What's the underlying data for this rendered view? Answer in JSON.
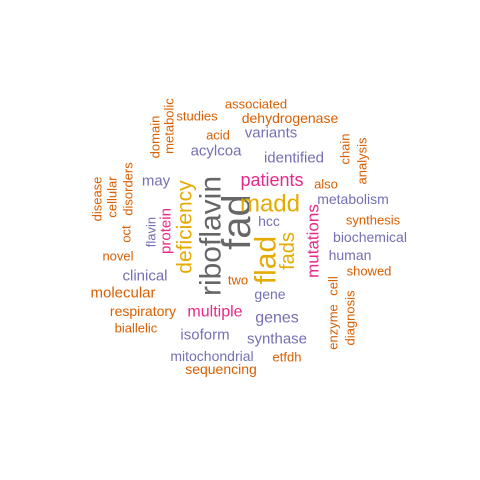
{
  "colors": {
    "orange": "#d95f02",
    "purple": "#7570b3",
    "magenta": "#e7298a",
    "gold": "#e6ab02",
    "gray": "#666666"
  },
  "words": [
    {
      "text": "fad",
      "color": "gray"
    },
    {
      "text": "riboflavin",
      "color": "gray"
    },
    {
      "text": "flad",
      "color": "gold"
    },
    {
      "text": "madd",
      "color": "gold"
    },
    {
      "text": "deficiency",
      "color": "gold"
    },
    {
      "text": "fads",
      "color": "gold"
    },
    {
      "text": "patients",
      "color": "magenta"
    },
    {
      "text": "mutations",
      "color": "magenta"
    },
    {
      "text": "multiple",
      "color": "magenta"
    },
    {
      "text": "protein",
      "color": "magenta"
    },
    {
      "text": "genes",
      "color": "purple"
    },
    {
      "text": "acylcoa",
      "color": "purple"
    },
    {
      "text": "identified",
      "color": "purple"
    },
    {
      "text": "variants",
      "color": "purple"
    },
    {
      "text": "biochemical",
      "color": "purple"
    },
    {
      "text": "metabolism",
      "color": "purple"
    },
    {
      "text": "human",
      "color": "purple"
    },
    {
      "text": "clinical",
      "color": "purple"
    },
    {
      "text": "isoform",
      "color": "purple"
    },
    {
      "text": "synthase",
      "color": "purple"
    },
    {
      "text": "mitochondrial",
      "color": "purple"
    },
    {
      "text": "gene",
      "color": "purple"
    },
    {
      "text": "may",
      "color": "purple"
    },
    {
      "text": "hcc",
      "color": "purple"
    },
    {
      "text": "flavin",
      "color": "purple"
    },
    {
      "text": "dehydrogenase",
      "color": "orange"
    },
    {
      "text": "associated",
      "color": "orange"
    },
    {
      "text": "studies",
      "color": "orange"
    },
    {
      "text": "acid",
      "color": "orange"
    },
    {
      "text": "metabolic",
      "color": "orange"
    },
    {
      "text": "domain",
      "color": "orange"
    },
    {
      "text": "chain",
      "color": "orange"
    },
    {
      "text": "analysis",
      "color": "orange"
    },
    {
      "text": "also",
      "color": "orange"
    },
    {
      "text": "synthesis",
      "color": "orange"
    },
    {
      "text": "showed",
      "color": "orange"
    },
    {
      "text": "cell",
      "color": "orange"
    },
    {
      "text": "diagnosis",
      "color": "orange"
    },
    {
      "text": "enzyme",
      "color": "orange"
    },
    {
      "text": "etfdh",
      "color": "orange"
    },
    {
      "text": "sequencing",
      "color": "orange"
    },
    {
      "text": "biallelic",
      "color": "orange"
    },
    {
      "text": "respiratory",
      "color": "orange"
    },
    {
      "text": "molecular",
      "color": "orange"
    },
    {
      "text": "novel",
      "color": "orange"
    },
    {
      "text": "disease",
      "color": "orange"
    },
    {
      "text": "cellular",
      "color": "orange"
    },
    {
      "text": "disorders",
      "color": "orange"
    },
    {
      "text": "oct",
      "color": "orange"
    },
    {
      "text": "two",
      "color": "orange"
    }
  ]
}
